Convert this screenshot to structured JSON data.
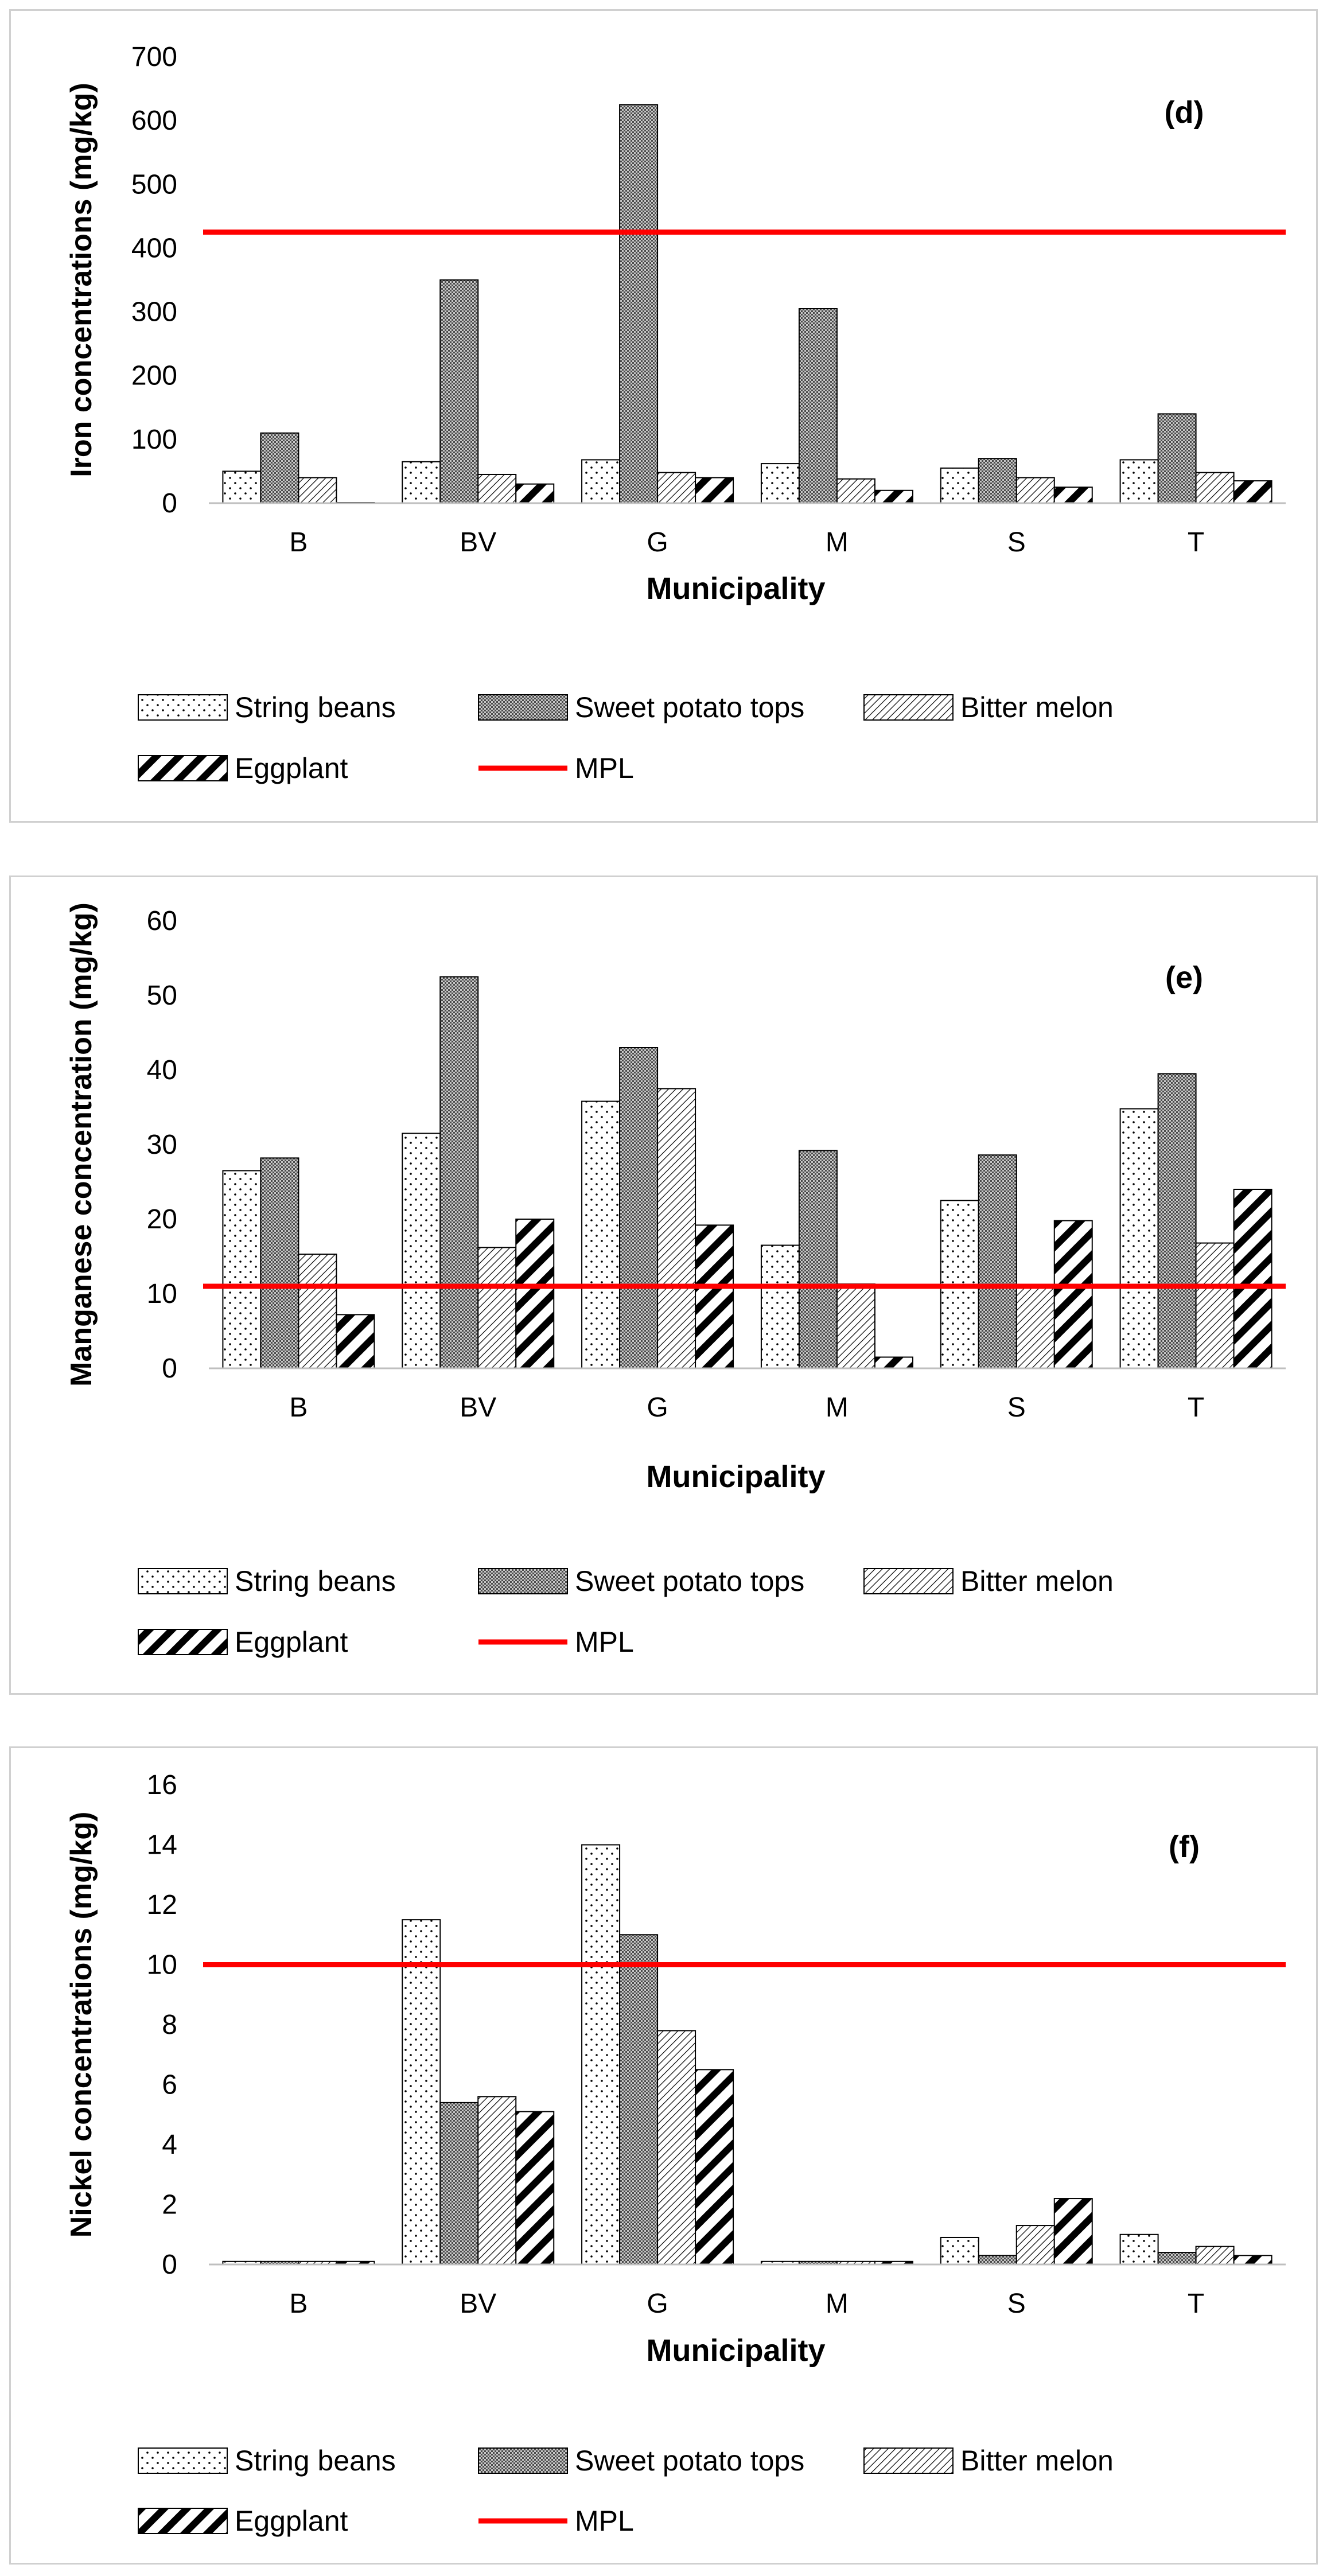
{
  "series_names": [
    "String beans",
    "Sweet potato tops",
    "Bitter melon",
    "Eggplant"
  ],
  "mpl_label": "MPL",
  "colors": {
    "mpl": "#ff0000",
    "bar_stroke": "#000000",
    "axis": "#bfbfbf",
    "text": "#000000"
  },
  "chart_data": [
    {
      "type": "bar",
      "panel_label": "(d)",
      "title": "",
      "xlabel": "Municipality",
      "ylabel": "Iron concentrations (mg/kg)",
      "categories": [
        "B",
        "BV",
        "G",
        "M",
        "S",
        "T"
      ],
      "ylim": [
        0,
        700
      ],
      "yticks": [
        0,
        100,
        200,
        300,
        400,
        500,
        600,
        700
      ],
      "series": [
        {
          "name": "String beans",
          "values": [
            50,
            65,
            68,
            62,
            55,
            68
          ]
        },
        {
          "name": "Sweet potato tops",
          "values": [
            110,
            350,
            625,
            305,
            70,
            140
          ]
        },
        {
          "name": "Bitter melon",
          "values": [
            40,
            45,
            48,
            38,
            40,
            48
          ]
        },
        {
          "name": "Eggplant",
          "values": [
            0,
            30,
            40,
            20,
            25,
            35
          ]
        }
      ],
      "mpl": 425,
      "legend": "bottom"
    },
    {
      "type": "bar",
      "panel_label": "(e)",
      "title": "",
      "xlabel": "Municipality",
      "ylabel": "Manganese concentration (mg/kg)",
      "categories": [
        "B",
        "BV",
        "G",
        "M",
        "S",
        "T"
      ],
      "ylim": [
        0,
        60
      ],
      "yticks": [
        0,
        10,
        20,
        30,
        40,
        50,
        60
      ],
      "series": [
        {
          "name": "String beans",
          "values": [
            26.5,
            31.5,
            35.8,
            16.5,
            22.5,
            34.8
          ]
        },
        {
          "name": "Sweet potato tops",
          "values": [
            28.2,
            52.5,
            43,
            29.2,
            28.6,
            39.5
          ]
        },
        {
          "name": "Bitter melon",
          "values": [
            15.3,
            16.2,
            37.5,
            11.3,
            11,
            16.8
          ]
        },
        {
          "name": "Eggplant",
          "values": [
            7.2,
            20,
            19.2,
            1.5,
            19.8,
            24
          ]
        }
      ],
      "mpl": 11,
      "legend": "bottom"
    },
    {
      "type": "bar",
      "panel_label": "(f)",
      "title": "",
      "xlabel": "Municipality",
      "ylabel": "Nickel concentrations (mg/kg)",
      "categories": [
        "B",
        "BV",
        "G",
        "M",
        "S",
        "T"
      ],
      "ylim": [
        0,
        16
      ],
      "yticks": [
        0,
        2,
        4,
        6,
        8,
        10,
        12,
        14,
        16
      ],
      "series": [
        {
          "name": "String beans",
          "values": [
            0.1,
            11.5,
            14,
            0.1,
            0.9,
            1
          ]
        },
        {
          "name": "Sweet potato tops",
          "values": [
            0.1,
            5.4,
            11,
            0.1,
            0.3,
            0.4
          ]
        },
        {
          "name": "Bitter melon",
          "values": [
            0.1,
            5.6,
            7.8,
            0.1,
            1.3,
            0.6
          ]
        },
        {
          "name": "Eggplant",
          "values": [
            0.1,
            5.1,
            6.5,
            0.1,
            2.2,
            0.3
          ]
        }
      ],
      "mpl": 10,
      "legend": "bottom"
    }
  ]
}
